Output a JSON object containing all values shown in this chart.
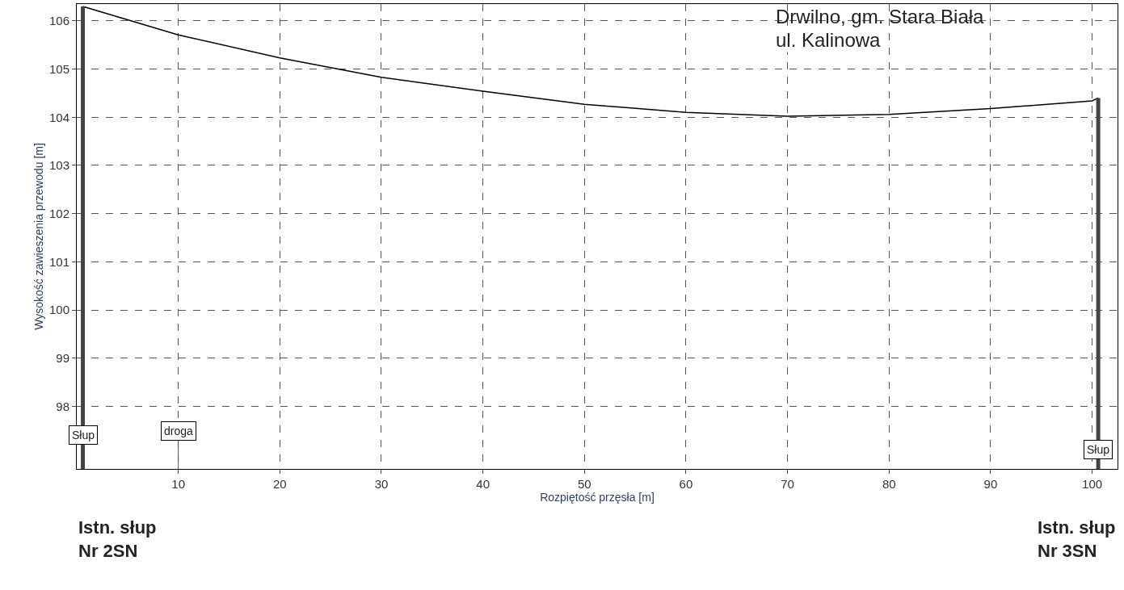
{
  "chart_data": {
    "type": "line",
    "title": "Drwilno, gm. Stara Biała",
    "subtitle": "ul. Kalinowa",
    "xlabel": "Rozpiętość przęsła [m]",
    "ylabel": "Wysokość zawieszenia przewodu [m]",
    "xlim": [
      0,
      102.5
    ],
    "xticks": [
      10,
      20,
      30,
      40,
      50,
      60,
      70,
      80,
      90,
      100
    ],
    "ylim": [
      96.7,
      106.35
    ],
    "yticks": [
      98,
      99,
      100,
      101,
      102,
      103,
      104,
      105,
      106
    ],
    "grid": true,
    "marker": "none",
    "line_style": "solid",
    "series": [
      {
        "color": "#000000",
        "x": [
          0.6,
          10,
          20,
          30,
          40,
          50,
          60,
          70,
          80,
          90,
          100,
          100.6
        ],
        "values": [
          106.3,
          105.71,
          105.23,
          104.83,
          104.54,
          104.27,
          104.1,
          104.02,
          104.06,
          104.18,
          104.34,
          104.4
        ]
      },
      {
        "color": "#444444",
        "x": [
          0.6,
          0.6
        ],
        "values": [
          96.7,
          106.3
        ]
      },
      {
        "color": "#444444",
        "x": [
          100.6,
          100.6
        ],
        "values": [
          96.7,
          104.4
        ]
      }
    ],
    "ref_lines": [
      {
        "axis": "x",
        "value": 10,
        "label": "droga",
        "color": "#555555"
      }
    ],
    "annotations": [
      {
        "text": "Słup",
        "x": 0.6,
        "y": 97.4
      },
      {
        "text": "Słup",
        "x": 100.6,
        "y": 97.1
      },
      "Istn. słup\nNr 2SN",
      "Istn. słup\nNr 3SN"
    ]
  }
}
